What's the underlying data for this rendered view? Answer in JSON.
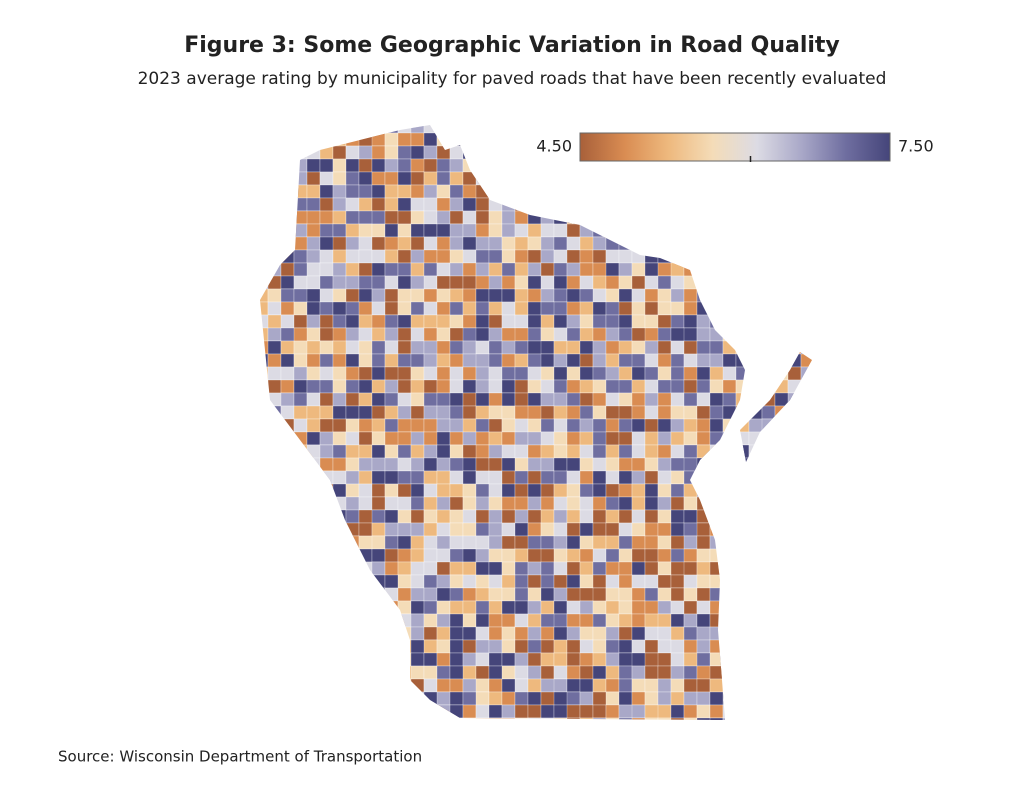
{
  "header": {
    "title": "Figure 3: Some Geographic Variation in Road Quality",
    "subtitle": "2023 average rating by municipality for paved roads that have been recently evaluated"
  },
  "legend": {
    "ticks": [
      {
        "value": 4.5,
        "label": "4.50"
      },
      {
        "value": 7.5,
        "label": "7.50"
      }
    ],
    "midpoint": 6.15,
    "colors": [
      "#a8603a",
      "#d98c52",
      "#eeb97e",
      "#f4dcb8",
      "#dcdbe4",
      "#a9a8c8",
      "#6f6ea0",
      "#45457a"
    ]
  },
  "source": "Source: Wisconsin Department of Transportation"
}
